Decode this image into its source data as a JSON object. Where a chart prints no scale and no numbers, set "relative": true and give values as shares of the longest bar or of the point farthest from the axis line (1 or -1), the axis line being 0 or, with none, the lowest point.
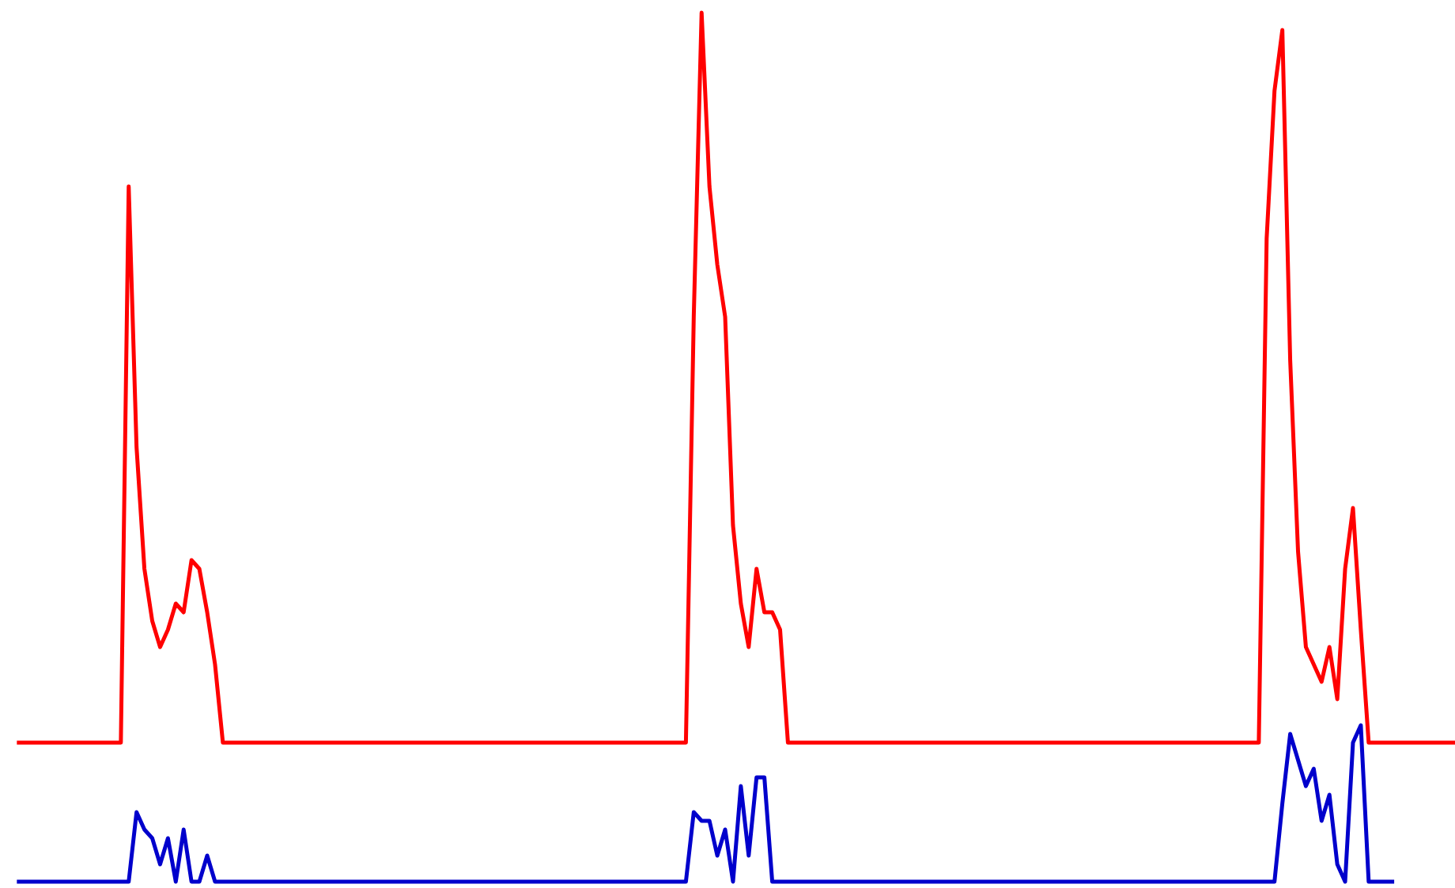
{
  "chart_data": {
    "type": "line",
    "relative": true,
    "categories": [
      null,
      null,
      null,
      null,
      null,
      null,
      null,
      null,
      null,
      null,
      null,
      null,
      null,
      null,
      null,
      null,
      null,
      null,
      null,
      null,
      null,
      null,
      null,
      null,
      null,
      null,
      null,
      null,
      null,
      null,
      null,
      null,
      null,
      null,
      null,
      null,
      null,
      null,
      null,
      null,
      null,
      null,
      null,
      null,
      null,
      null,
      null,
      null,
      null,
      null,
      null,
      null,
      null,
      null,
      null,
      null,
      null,
      null,
      null,
      null,
      null,
      null,
      null,
      null,
      null,
      null,
      null,
      null,
      null,
      null,
      null,
      null,
      null,
      null,
      null,
      null,
      null,
      null,
      null,
      null,
      null,
      null,
      null,
      null,
      null,
      null,
      null,
      null,
      null,
      null,
      null,
      null,
      null,
      null,
      null,
      null,
      null,
      null,
      null,
      null,
      null,
      null,
      null,
      null,
      null,
      null,
      null,
      null,
      null,
      null,
      null,
      null,
      null,
      null,
      null,
      null,
      null,
      null,
      null,
      null,
      null,
      null,
      null,
      null,
      null,
      null,
      null,
      null,
      null,
      null,
      null,
      null,
      null,
      null,
      null,
      null,
      null,
      null,
      null,
      null,
      null,
      null,
      null,
      null,
      null,
      null,
      null,
      null,
      null,
      null,
      null,
      null,
      null,
      null,
      null,
      null,
      null,
      null,
      null,
      null,
      null,
      null,
      null,
      null,
      null,
      null,
      null,
      null,
      null,
      null,
      null,
      null,
      null,
      null,
      null,
      null,
      null,
      null,
      null,
      null,
      null,
      null,
      null,
      null
    ],
    "series": [
      {
        "color": "#ff0000",
        "values": [
          0.16,
          0.16,
          0.16,
          0.16,
          0.16,
          0.16,
          0.16,
          0.16,
          0.16,
          0.16,
          0.16,
          0.16,
          0.16,
          0.16,
          0.8,
          0.5,
          0.36,
          0.3,
          0.27,
          0.29,
          0.32,
          0.31,
          0.37,
          0.36,
          0.31,
          0.25,
          0.16,
          0.16,
          0.16,
          0.16,
          0.16,
          0.16,
          0.16,
          0.16,
          0.16,
          0.16,
          0.16,
          0.16,
          0.16,
          0.16,
          0.16,
          0.16,
          0.16,
          0.16,
          0.16,
          0.16,
          0.16,
          0.16,
          0.16,
          0.16,
          0.16,
          0.16,
          0.16,
          0.16,
          0.16,
          0.16,
          0.16,
          0.16,
          0.16,
          0.16,
          0.16,
          0.16,
          0.16,
          0.16,
          0.16,
          0.16,
          0.16,
          0.16,
          0.16,
          0.16,
          0.16,
          0.16,
          0.16,
          0.16,
          0.16,
          0.16,
          0.16,
          0.16,
          0.16,
          0.16,
          0.16,
          0.16,
          0.16,
          0.16,
          0.16,
          0.16,
          0.65,
          1.0,
          0.8,
          0.71,
          0.65,
          0.41,
          0.32,
          0.27,
          0.36,
          0.31,
          0.31,
          0.29,
          0.16,
          0.16,
          0.16,
          0.16,
          0.16,
          0.16,
          0.16,
          0.16,
          0.16,
          0.16,
          0.16,
          0.16,
          0.16,
          0.16,
          0.16,
          0.16,
          0.16,
          0.16,
          0.16,
          0.16,
          0.16,
          0.16,
          0.16,
          0.16,
          0.16,
          0.16,
          0.16,
          0.16,
          0.16,
          0.16,
          0.16,
          0.16,
          0.16,
          0.16,
          0.16,
          0.16,
          0.16,
          0.16,
          0.16,
          0.16,
          0.16,
          0.16,
          0.16,
          0.16,
          0.16,
          0.16,
          0.16,
          0.16,
          0.16,
          0.16,
          0.16,
          0.16,
          0.16,
          0.16,
          0.16,
          0.16,
          0.16,
          0.16,
          0.16,
          0.16,
          0.16,
          0.74,
          0.91,
          0.98,
          0.6,
          0.38,
          0.27,
          0.25,
          0.23,
          0.27,
          0.21,
          0.36,
          0.43,
          0.29,
          0.16,
          0.16,
          0.16,
          0.16,
          0.16,
          0.16,
          0.16,
          0.16,
          0.16,
          0.16,
          0.16,
          0.16
        ]
      },
      {
        "color": "#0000cc",
        "values": [
          0,
          0,
          0,
          0,
          0,
          0,
          0,
          0,
          0,
          0,
          0,
          0,
          0,
          0,
          0,
          0.08,
          0.06,
          0.05,
          0.02,
          0.05,
          0,
          0.06,
          0,
          0,
          0.03,
          0,
          0,
          0,
          0,
          0,
          0,
          0,
          0,
          0,
          0,
          0,
          0,
          0,
          0,
          0,
          0,
          0,
          0,
          0,
          0,
          0,
          0,
          0,
          0,
          0,
          0,
          0,
          0,
          0,
          0,
          0,
          0,
          0,
          0,
          0,
          0,
          0,
          0,
          0,
          0,
          0,
          0,
          0,
          0,
          0,
          0,
          0,
          0,
          0,
          0,
          0,
          0,
          0,
          0,
          0,
          0,
          0,
          0,
          0,
          0,
          0,
          0.08,
          0.07,
          0.07,
          0.03,
          0.06,
          0,
          0.11,
          0.03,
          0.12,
          0.12,
          0,
          0,
          0,
          0,
          0,
          0,
          0,
          0,
          0,
          0,
          0,
          0,
          0,
          0,
          0,
          0,
          0,
          0,
          0,
          0,
          0,
          0,
          0,
          0,
          0,
          0,
          0,
          0,
          0,
          0,
          0,
          0,
          0,
          0,
          0,
          0,
          0,
          0,
          0,
          0,
          0,
          0,
          0,
          0,
          0,
          0,
          0,
          0,
          0,
          0,
          0,
          0,
          0,
          0,
          0,
          0,
          0,
          0,
          0,
          0,
          0,
          0,
          0,
          0,
          0,
          0.09,
          0.17,
          0.14,
          0.11,
          0.13,
          0.07,
          0.1,
          0.02,
          0,
          0.16,
          0.18,
          0,
          0,
          0,
          0,
          null,
          null,
          null,
          null,
          null,
          null,
          null,
          null
        ]
      }
    ]
  }
}
